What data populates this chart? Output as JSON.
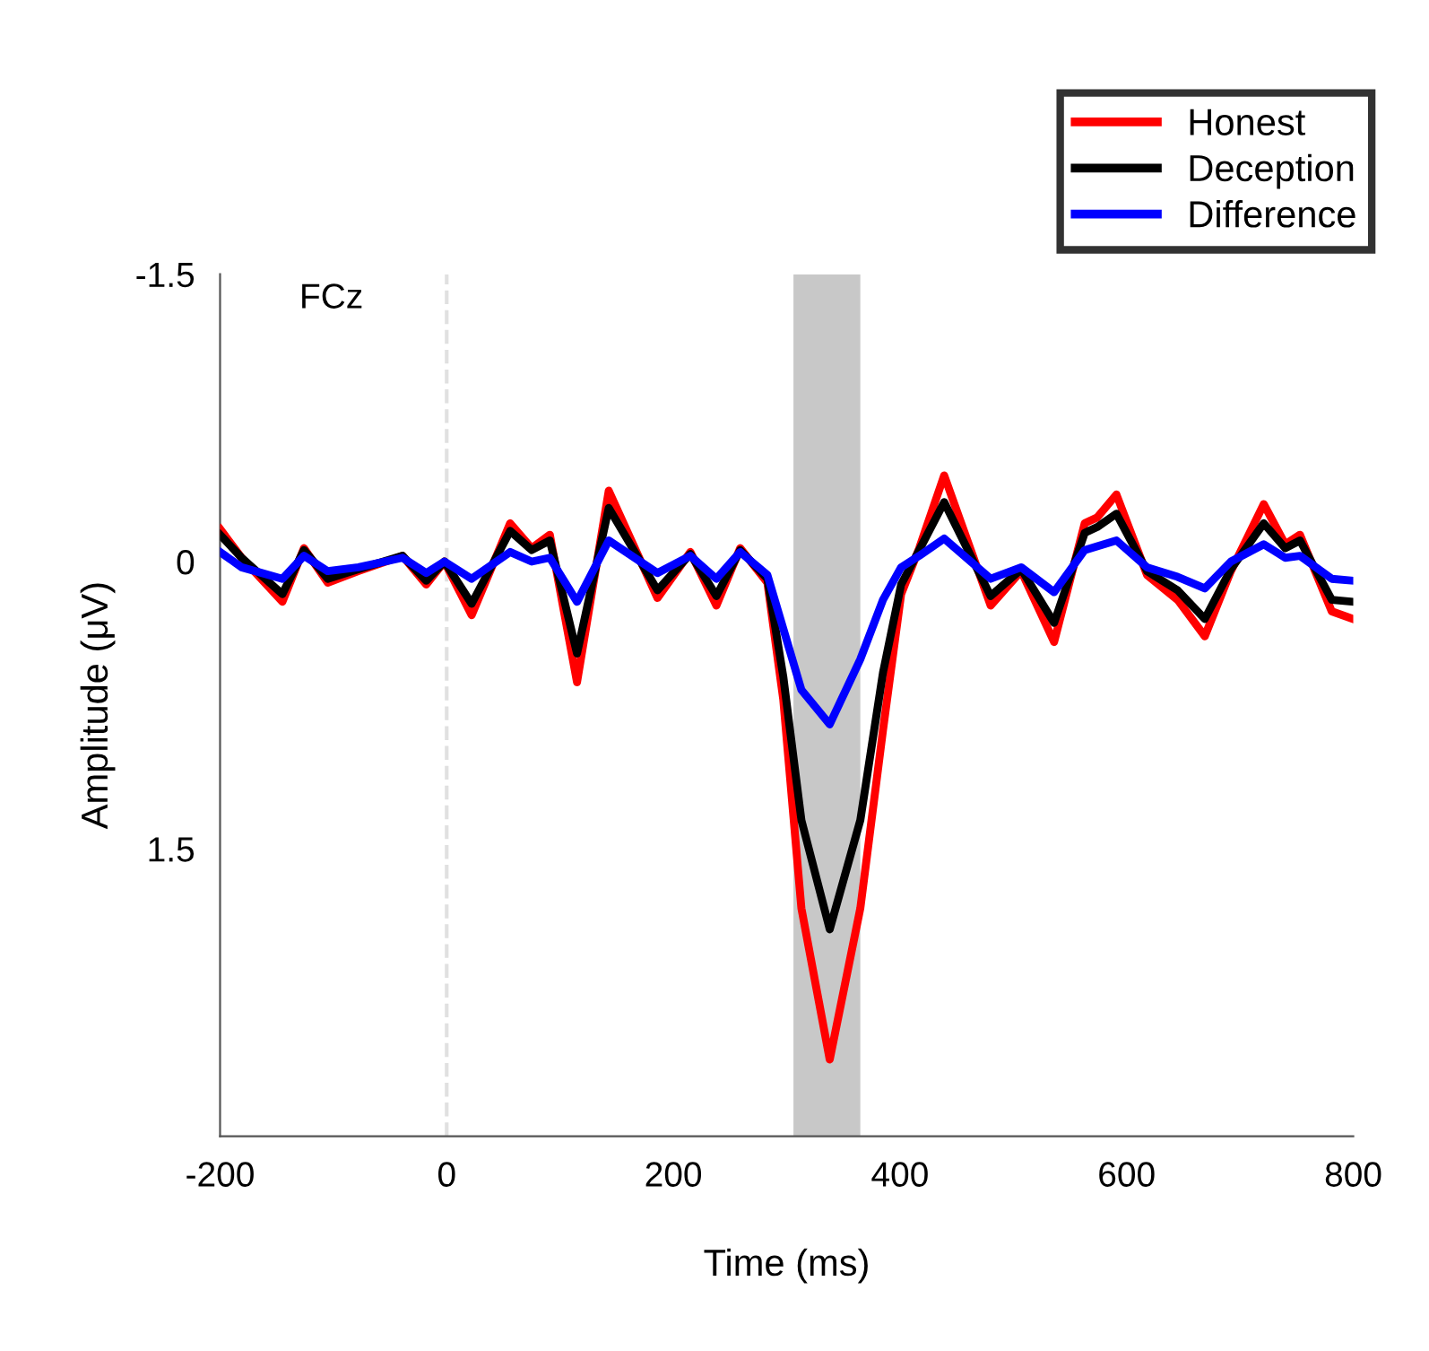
{
  "chart_data": {
    "type": "line",
    "xlabel": "Time (ms)",
    "ylabel": "Amplitude (μV)",
    "annotations": [
      "FCz"
    ],
    "x": [
      -200,
      -181,
      -145,
      -126,
      -105,
      -78,
      -39,
      -18,
      -2,
      22,
      56,
      75,
      91,
      115,
      143,
      186,
      215,
      238,
      259,
      283,
      297,
      313,
      338,
      365,
      385,
      401,
      417,
      439,
      480,
      507,
      536,
      563,
      574,
      591,
      618,
      645,
      669,
      692,
      721,
      740,
      753,
      781,
      800
    ],
    "series": [
      {
        "name": "Honest",
        "color": "#ff0000",
        "values": [
          -0.17,
          -0.02,
          0.21,
          -0.07,
          0.11,
          0.05,
          -0.03,
          0.12,
          0,
          0.28,
          -0.2,
          -0.07,
          -0.14,
          0.63,
          -0.37,
          0.19,
          -0.05,
          0.23,
          -0.07,
          0.11,
          0.72,
          1.81,
          2.6,
          1.81,
          0.88,
          0.17,
          -0.07,
          -0.45,
          0.23,
          0.05,
          0.42,
          -0.2,
          -0.23,
          -0.35,
          0.07,
          0.2,
          0.39,
          0.05,
          -0.3,
          -0.09,
          -0.14,
          0.26,
          0.3
        ]
      },
      {
        "name": "Deception",
        "color": "#000000",
        "values": [
          -0.14,
          -0.02,
          0.17,
          -0.06,
          0.09,
          0.04,
          -0.03,
          0.1,
          0,
          0.22,
          -0.16,
          -0.06,
          -0.11,
          0.48,
          -0.28,
          0.15,
          -0.04,
          0.18,
          -0.06,
          0.09,
          0.6,
          1.35,
          1.92,
          1.35,
          0.58,
          0.12,
          -0.06,
          -0.31,
          0.18,
          0.04,
          0.32,
          -0.15,
          -0.18,
          -0.25,
          0.05,
          0.15,
          0.3,
          0.04,
          -0.2,
          -0.07,
          -0.11,
          0.2,
          0.21
        ]
      },
      {
        "name": "Difference",
        "color": "#0000ff",
        "values": [
          -0.05,
          0.03,
          0.09,
          -0.03,
          0.05,
          0.03,
          -0.02,
          0.06,
          0,
          0.09,
          -0.05,
          0,
          -0.02,
          0.21,
          -0.11,
          0.06,
          -0.03,
          0.09,
          -0.05,
          0.07,
          0.35,
          0.67,
          0.85,
          0.51,
          0.2,
          0.03,
          -0.03,
          -0.12,
          0.09,
          0.03,
          0.16,
          -0.06,
          -0.08,
          -0.11,
          0.03,
          0.08,
          0.14,
          0,
          -0.09,
          -0.02,
          -0.03,
          0.09,
          0.1
        ]
      }
    ],
    "xlim": [
      -200,
      800
    ],
    "xticks": [
      -200,
      0,
      200,
      400,
      600,
      800
    ],
    "ylim": [
      3.0,
      -1.5
    ],
    "yticks": [
      -1.5,
      0,
      1.5
    ],
    "ref_lines": [
      {
        "axis": "x",
        "value": 0,
        "color": "#e0e0e0",
        "line_style": "dashed"
      }
    ],
    "bands": [
      {
        "axis": "x",
        "from": 306,
        "to": 365,
        "color": "#c8c8c8"
      }
    ],
    "legend": "top right",
    "grid": false,
    "line_style": "solid",
    "marker": "none"
  }
}
